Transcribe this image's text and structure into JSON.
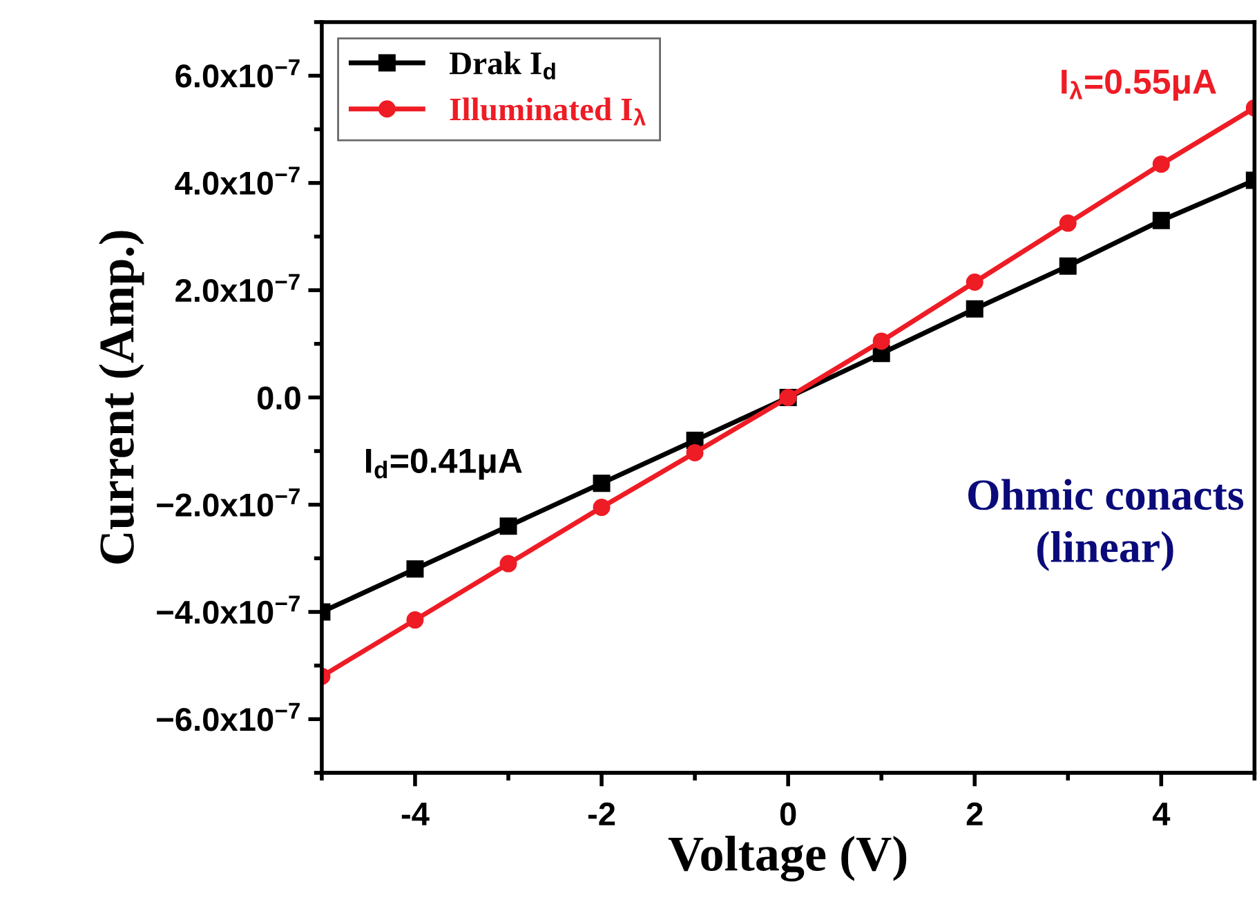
{
  "chart_data": {
    "type": "line",
    "xlabel": "Voltage (V)",
    "ylabel": "Current (Amp.)",
    "x": [
      -5,
      -4,
      -3,
      -2,
      -1,
      0,
      1,
      2,
      3,
      4,
      5
    ],
    "series": [
      {
        "name": "Drak I$_{d}$",
        "color": "#000000",
        "marker": "square",
        "values": [
          -4e-07,
          -3.2e-07,
          -2.4e-07,
          -1.6e-07,
          -8e-08,
          0,
          8.2e-08,
          1.65e-07,
          2.45e-07,
          3.3e-07,
          4.05e-07
        ]
      },
      {
        "name": "Illuminated I$_{λ}$",
        "color": "#ee1c25",
        "marker": "circle",
        "values": [
          -5.2e-07,
          -4.15e-07,
          -3.1e-07,
          -2.05e-07,
          -1.03e-07,
          0,
          1.05e-07,
          2.15e-07,
          3.25e-07,
          4.35e-07,
          5.4e-07
        ]
      }
    ],
    "xlim": [
      -5,
      5
    ],
    "xticks": [
      -4,
      -2,
      0,
      2,
      4
    ],
    "ylim": [
      -7e-07,
      7e-07
    ],
    "yticks": [
      {
        "value": -6e-07,
        "label": "−6.0x10$^{−7}$"
      },
      {
        "value": -4e-07,
        "label": "−4.0x10$^{−7}$"
      },
      {
        "value": -2e-07,
        "label": "−2.0x10$^{−7}$"
      },
      {
        "value": 0,
        "label": "0.0"
      },
      {
        "value": 2e-07,
        "label": "2.0x10$^{−7}$"
      },
      {
        "value": 4e-07,
        "label": "4.0x10$^{−7}$"
      },
      {
        "value": 6e-07,
        "label": "6.0x10$^{−7}$"
      }
    ],
    "legend": "top left",
    "grid": false,
    "line_style": "solid",
    "annotations": [
      "I$_{d}$=0.41μA",
      "I$_{λ}$=0.55μA",
      "Ohmic conacts\n(linear)"
    ]
  }
}
